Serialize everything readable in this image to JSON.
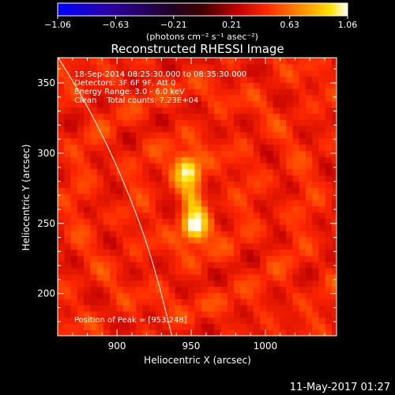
{
  "chart_data": {
    "type": "heatmap",
    "title": "Reconstructed RHESSI Image",
    "xlabel": "Heliocentric X (arcsec)",
    "ylabel": "Heliocentric Y (arcsec)",
    "xlim": [
      860,
      1048
    ],
    "ylim": [
      170,
      368
    ],
    "x_ticks": [
      900,
      950,
      1000
    ],
    "y_ticks": [
      200,
      250,
      300,
      350
    ],
    "colorbar": {
      "label": "(photons cm⁻² s⁻¹ asec⁻²)",
      "range": [
        -1.06,
        1.06
      ],
      "ticks": [
        "−1.06",
        "−0.63",
        "−0.21",
        "0.21",
        "0.63",
        "1.06"
      ],
      "colormap": [
        "#0000ff",
        "#3a0080",
        "#000000",
        "#8a0000",
        "#ff2800",
        "#ff8a00",
        "#ffe000",
        "#ffffff"
      ]
    },
    "sources": [
      {
        "x": 947,
        "y": 288,
        "peak": 0.92
      },
      {
        "x": 953,
        "y": 248,
        "peak": 1.0
      }
    ],
    "background_level": 0.42,
    "limb_curve": [
      [
        858,
        372
      ],
      [
        878,
        338
      ],
      [
        898,
        296
      ],
      [
        915,
        252
      ],
      [
        926,
        216
      ],
      [
        937,
        170
      ]
    ]
  },
  "annotations": {
    "time_range": "18-Sep-2014 08:25:30.000 to 08:35:30.000",
    "detectors": "Detectors: 3F 6F 9F, Att 0",
    "energy": "Energy Range: 3.0 - 6.0 keV",
    "clean": "Clean    Total counts: 7.23E+04",
    "peak_position": "Position of Peak = [953,248]"
  },
  "footer": {
    "date": "11-May-2017 01:27"
  }
}
